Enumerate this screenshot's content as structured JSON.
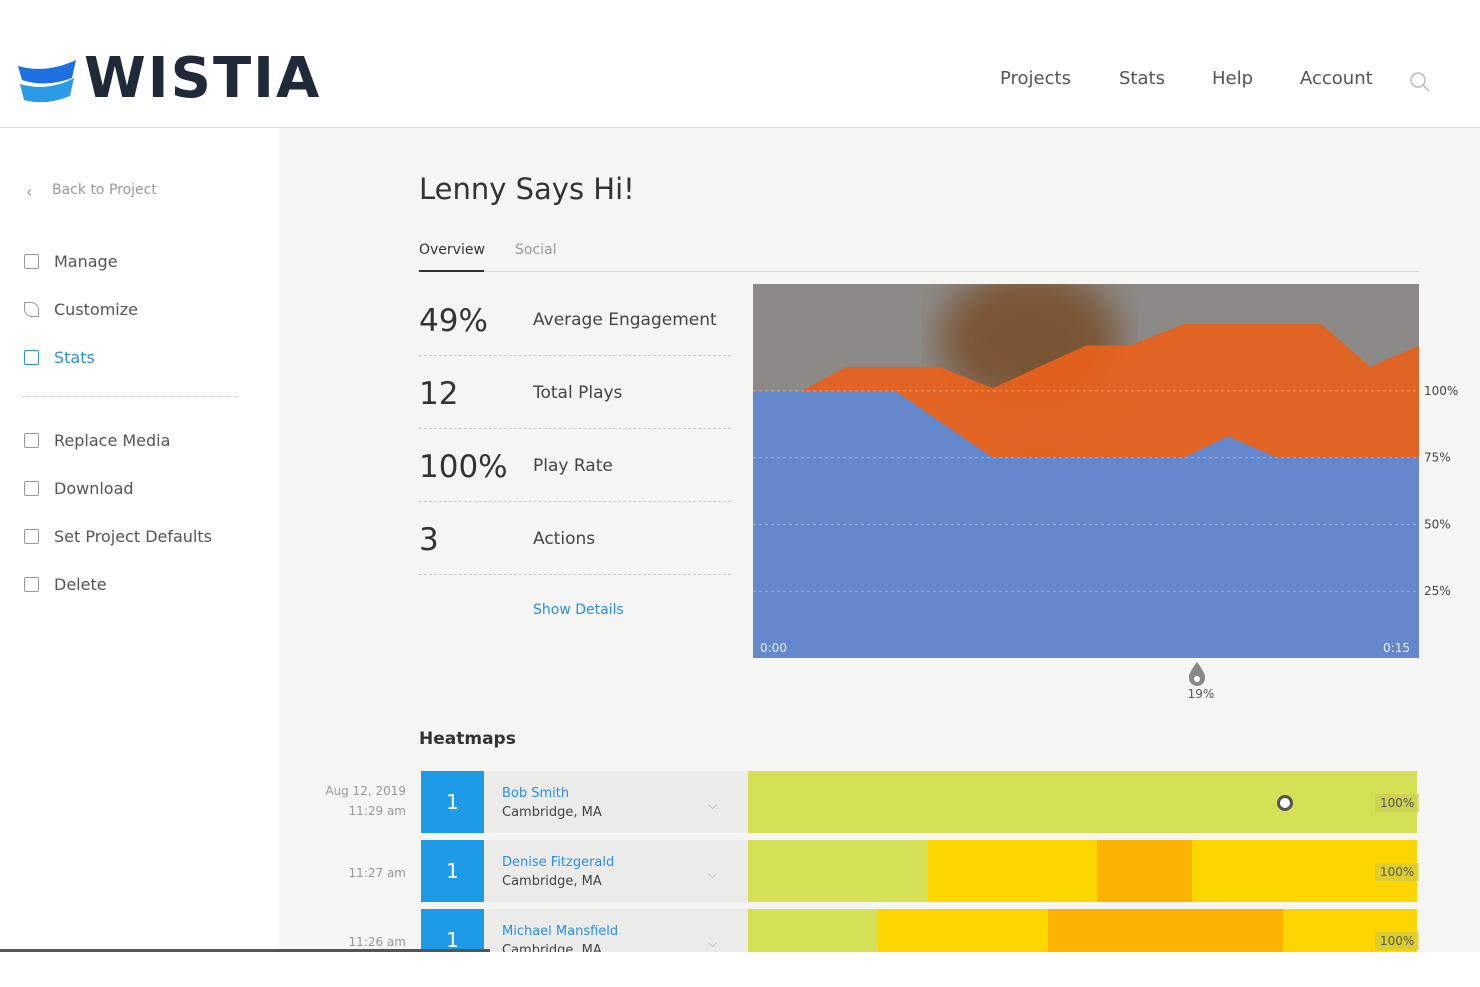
{
  "header": {
    "logo": "WISTIA",
    "nav": [
      "Projects",
      "Stats",
      "Help",
      "Account"
    ]
  },
  "sidebar": {
    "back": "Back to Project",
    "items": [
      "Manage",
      "Customize",
      "Stats"
    ],
    "items2": [
      "Replace Media",
      "Download",
      "Set Project Defaults",
      "Delete"
    ]
  },
  "main": {
    "title": "Lenny Says Hi!",
    "tabs": [
      "Overview",
      "Social"
    ],
    "stats": [
      {
        "value": "49%",
        "label": "Average Engagement"
      },
      {
        "value": "12",
        "label": "Total Plays"
      },
      {
        "value": "100%",
        "label": "Play Rate"
      },
      {
        "value": "3",
        "label": "Actions"
      }
    ],
    "show_details": "Show Details"
  },
  "chart_data": {
    "type": "area",
    "xlim": [
      0,
      15
    ],
    "xticks": [
      {
        "value": 0,
        "label": "0:00"
      },
      {
        "value": 15,
        "label": "0:15"
      }
    ],
    "ylim": [
      0,
      140
    ],
    "yticks": [
      {
        "value": 100,
        "label": "100%"
      },
      {
        "value": 75,
        "label": "75%"
      },
      {
        "value": 50,
        "label": "50%"
      },
      {
        "value": 25,
        "label": "25%"
      }
    ],
    "grid": true,
    "series": [
      {
        "color": "#e8611c",
        "x": [
          0,
          1.1,
          2.1,
          4.2,
          5.4,
          7.5,
          8.5,
          9.7,
          12.8,
          13.9,
          15
        ],
        "values": [
          100,
          100,
          109,
          109,
          101,
          117,
          117,
          125,
          125,
          109,
          117
        ]
      },
      {
        "color": "#5b8bd9",
        "x": [
          0,
          3.2,
          5.4,
          9.7,
          10.7,
          11.8,
          15
        ],
        "values": [
          100,
          100,
          75,
          75,
          83,
          75,
          75
        ]
      }
    ],
    "marker": {
      "x": 10,
      "label": "19%"
    }
  },
  "heatmaps": {
    "title": "Heatmaps",
    "rows": [
      {
        "date": "Aug 12, 2019",
        "time": "11:29 am",
        "count": "1",
        "name": "Bob Smith",
        "location": "Cambridge, MA",
        "percent": "100%"
      },
      {
        "time": "11:27 am",
        "count": "1",
        "name": "Denise Fitzgerald",
        "location": "Cambridge, MA",
        "percent": "100%"
      },
      {
        "time": "11:26 am",
        "count": "1",
        "name": "Michael Mansfield",
        "location": "Cambridge, MA",
        "percent": "100%"
      }
    ]
  }
}
